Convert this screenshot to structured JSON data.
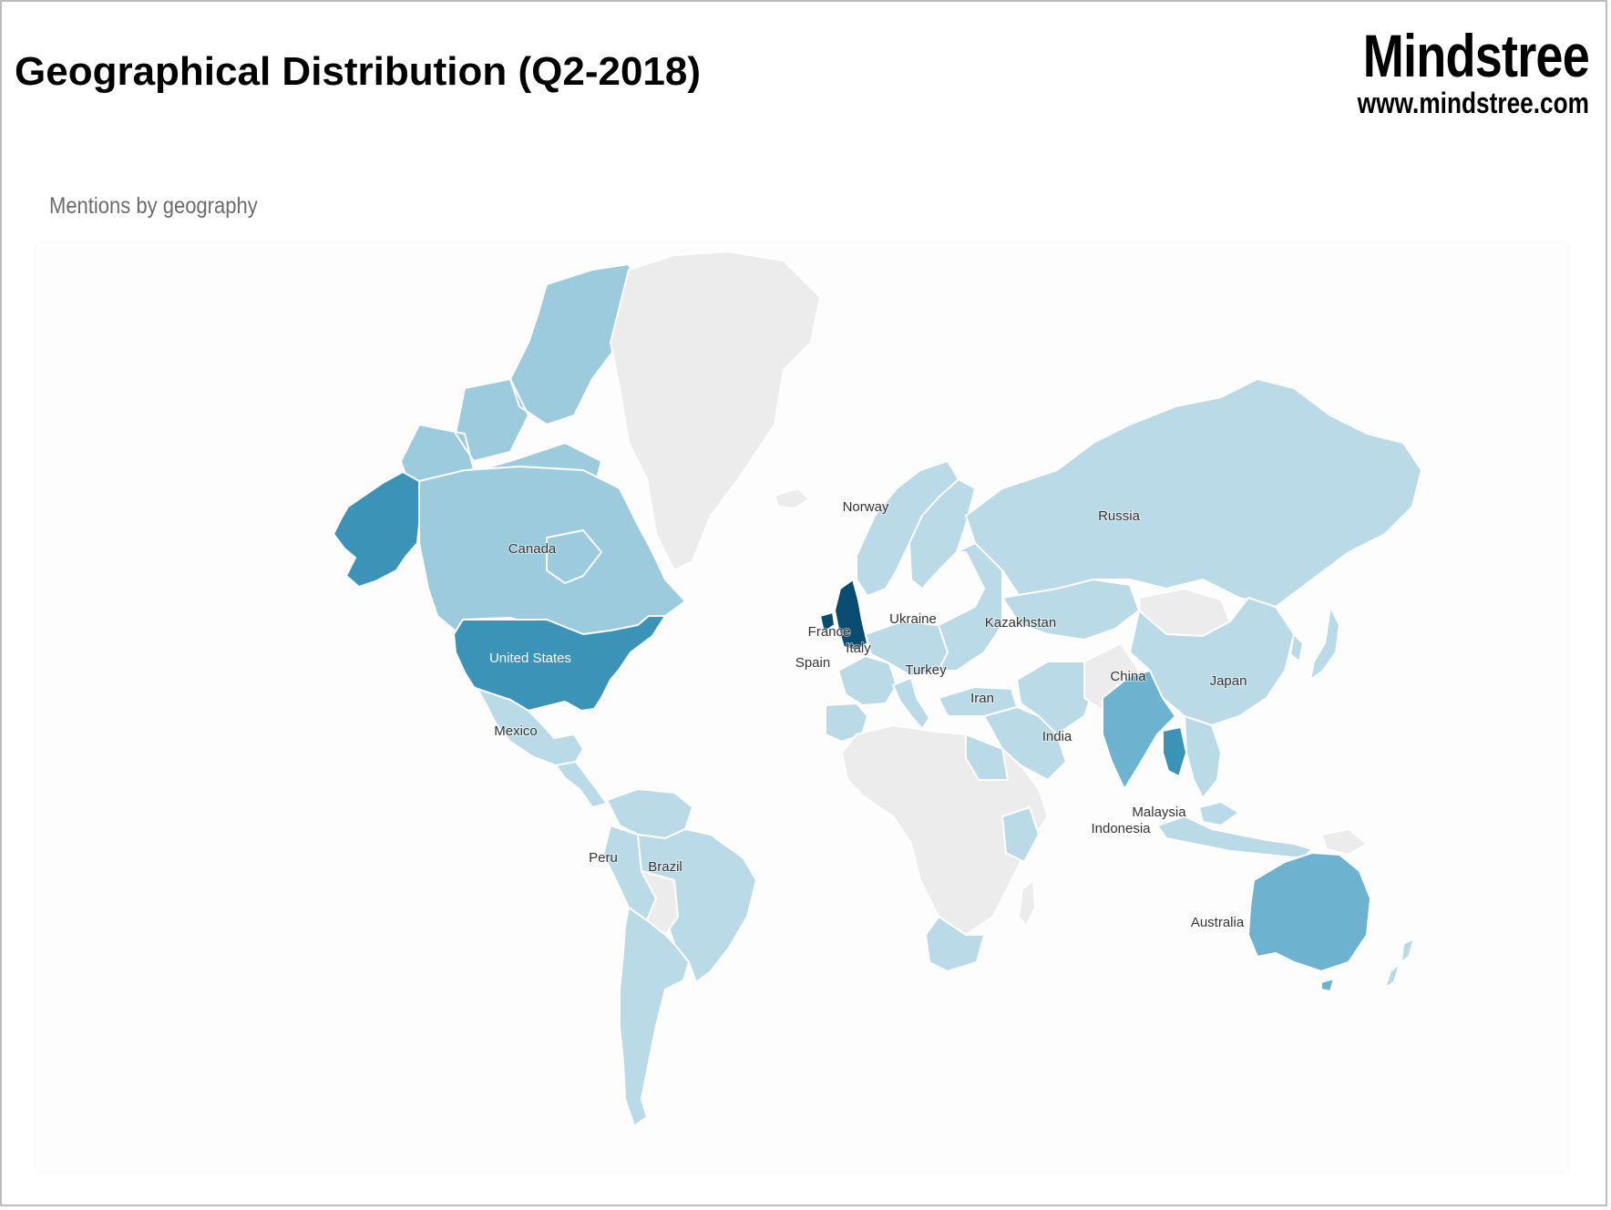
{
  "header": {
    "title": "Geographical Distribution (Q2-2018)",
    "brand_name": "Mindstree",
    "brand_url": "www.mindstree.com"
  },
  "map": {
    "subtitle": "Mentions by geography",
    "colors": {
      "none": "#ececec",
      "low": "#b9dae6",
      "medium": "#9ccbdd",
      "high": "#6db3cf",
      "very_high": "#3b94b8",
      "max": "#0a4b72",
      "background": "#fdfdfd"
    },
    "countries": {
      "canada": {
        "label": "Canada",
        "level": "medium"
      },
      "united_states": {
        "label": "United States",
        "level": "very_high"
      },
      "alaska": {
        "label": "",
        "level": "very_high"
      },
      "mexico": {
        "label": "Mexico",
        "level": "low"
      },
      "greenland": {
        "label": "",
        "level": "none"
      },
      "peru": {
        "label": "Peru",
        "level": "low"
      },
      "brazil": {
        "label": "Brazil",
        "level": "low"
      },
      "norway": {
        "label": "Norway",
        "level": "low"
      },
      "united_kingdom": {
        "label": "",
        "level": "max"
      },
      "france": {
        "label": "France",
        "level": "low"
      },
      "spain": {
        "label": "Spain",
        "level": "low"
      },
      "italy": {
        "label": "Italy",
        "level": "low"
      },
      "ukraine": {
        "label": "Ukraine",
        "level": "low"
      },
      "turkey": {
        "label": "Turkey",
        "level": "low"
      },
      "russia": {
        "label": "Russia",
        "level": "low"
      },
      "kazakhstan": {
        "label": "Kazakhstan",
        "level": "low"
      },
      "iran": {
        "label": "Iran",
        "level": "low"
      },
      "india": {
        "label": "India",
        "level": "high"
      },
      "china": {
        "label": "China",
        "level": "low"
      },
      "japan": {
        "label": "Japan",
        "level": "low"
      },
      "thailand": {
        "label": "",
        "level": "very_high"
      },
      "malaysia": {
        "label": "Malaysia",
        "level": "low"
      },
      "indonesia": {
        "label": "Indonesia",
        "level": "low"
      },
      "australia": {
        "label": "Australia",
        "level": "high"
      },
      "new_zealand": {
        "label": "",
        "level": "low"
      },
      "south_africa": {
        "label": "",
        "level": "low"
      },
      "africa": {
        "label": "",
        "level": "none"
      }
    }
  }
}
